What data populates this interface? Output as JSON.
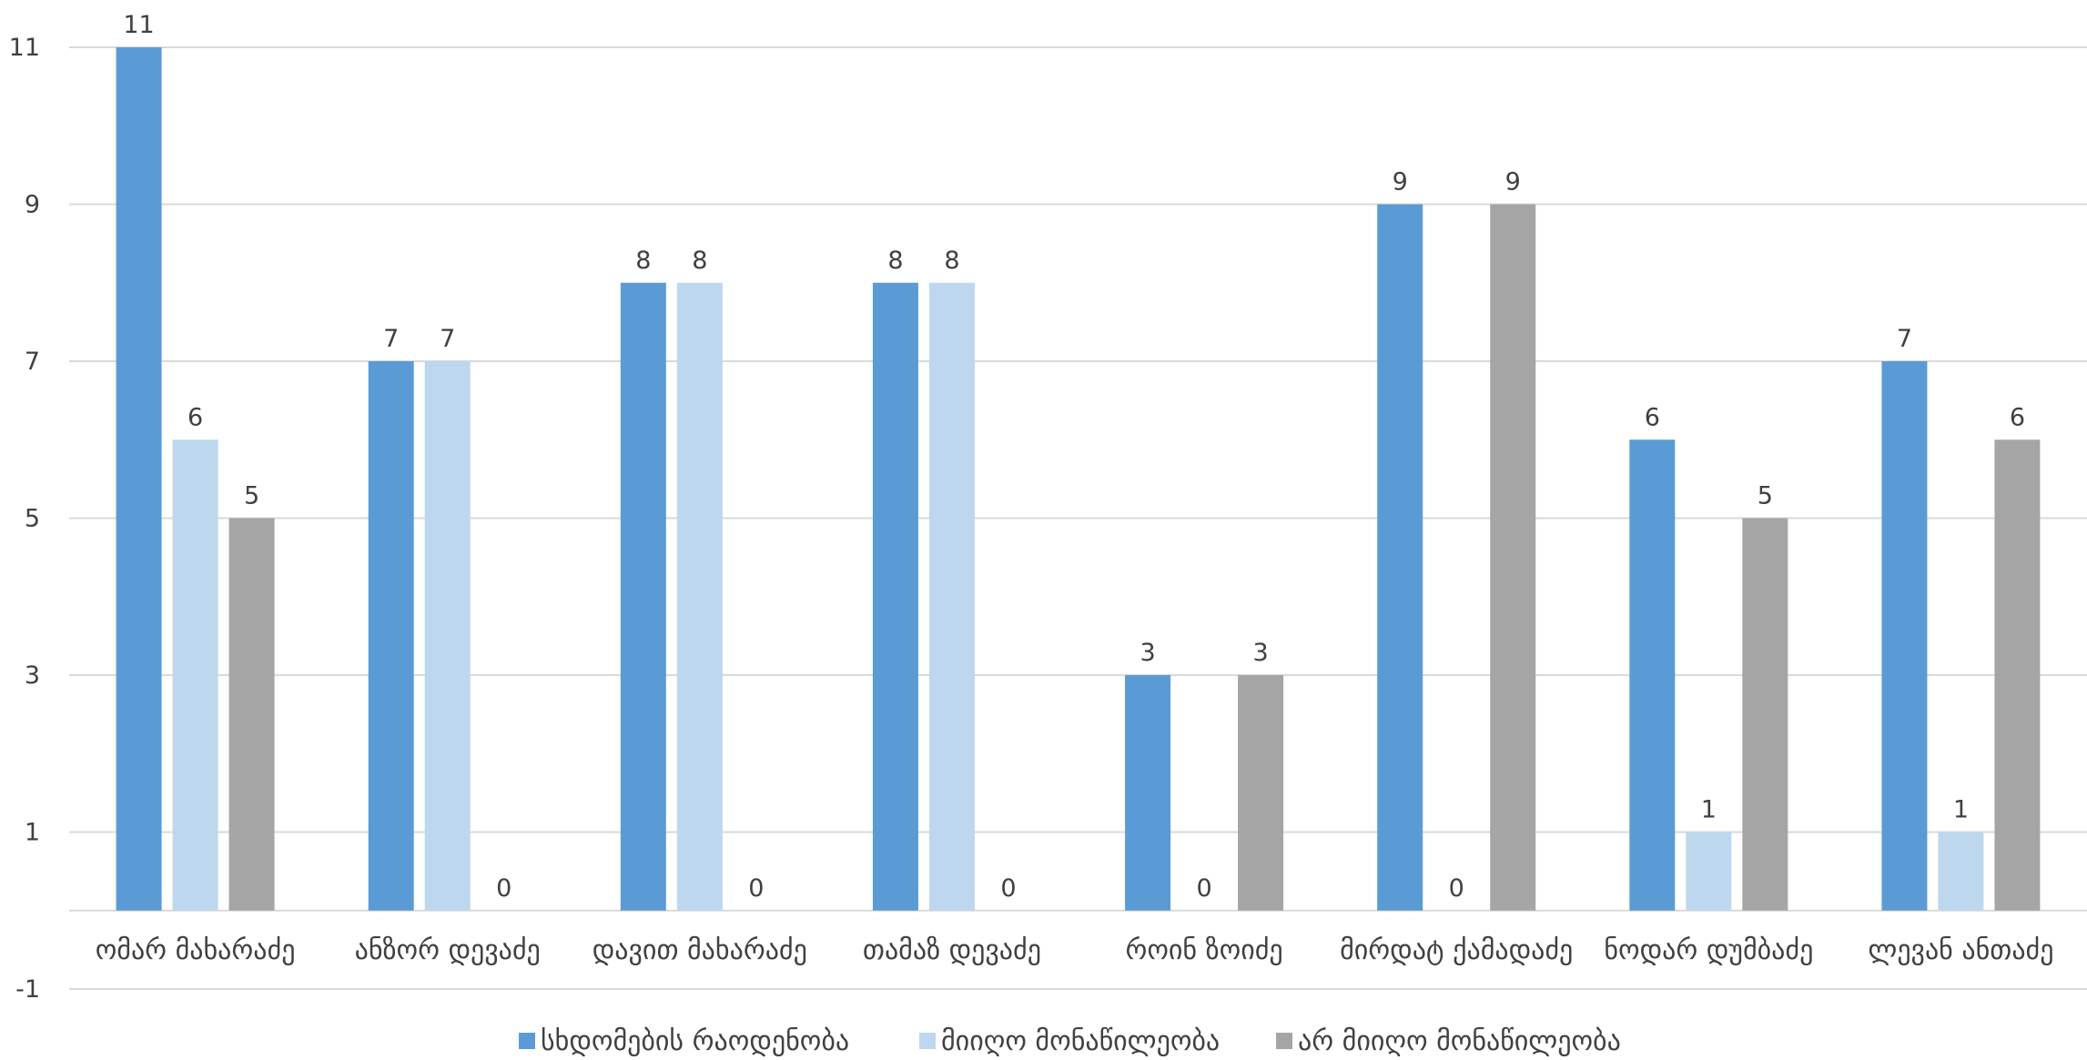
{
  "chart_data": {
    "type": "bar",
    "title": "",
    "xlabel": "",
    "ylabel": "",
    "categories": [
      "ომარ მახარაძე",
      "ანზორ დევაძე",
      "დავით მახარაძე",
      "თამაზ დევაძე",
      "როინ ზოიძე",
      "მირდატ ქამადაძე",
      "ნოდარ დუმბაძე",
      "ლევან ანთაძე"
    ],
    "series": [
      {
        "name": "სხდომების  რაოდენობა",
        "values": [
          11,
          7,
          8,
          8,
          3,
          9,
          6,
          7
        ],
        "color": "#5B9BD5"
      },
      {
        "name": "მიიღო მონაწილეობა",
        "values": [
          6,
          7,
          8,
          8,
          0,
          0,
          1,
          1
        ],
        "color": "#BDD7EE"
      },
      {
        "name": "არ მიიღო მონაწილეობა",
        "values": [
          5,
          0,
          0,
          0,
          3,
          9,
          5,
          6
        ],
        "color": "#A5A5A5"
      }
    ],
    "ylim": [
      -1,
      11
    ],
    "yticks": [
      -1,
      1,
      3,
      5,
      7,
      9,
      11
    ],
    "grid": true,
    "legend_position": "bottom"
  }
}
